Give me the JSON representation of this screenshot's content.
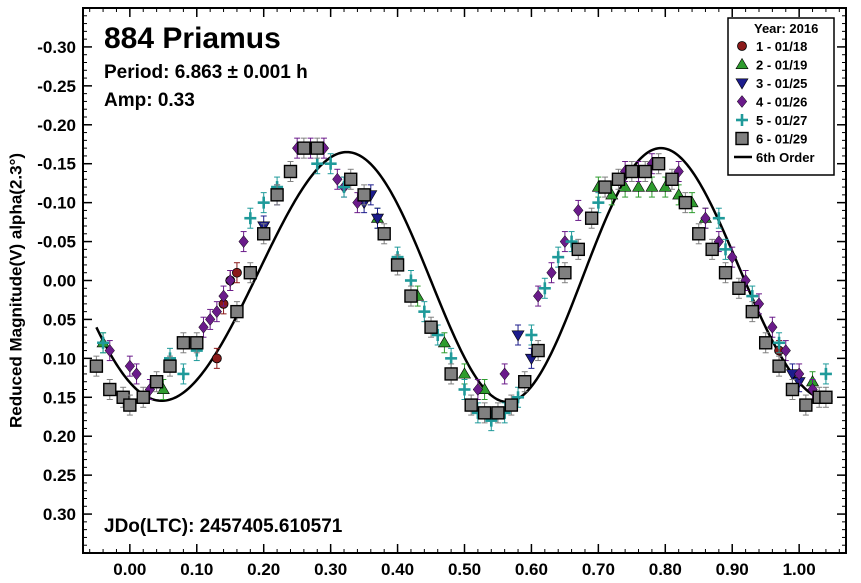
{
  "chart_data": {
    "type": "scatter",
    "title": "884 Priamus",
    "period_text": "Period: 6.863 ± 0.001 h",
    "amp_text": "Amp: 0.33",
    "jd_text": "JDo(LTC): 2457405.610571",
    "xlabel": "",
    "ylabel": "Reduced Magnitude(V) alpha(2.3°)",
    "xlim": [
      -0.07,
      1.07
    ],
    "ylim": [
      -0.35,
      0.35
    ],
    "y_inverted": true,
    "x_ticks": [
      "0.00",
      "0.10",
      "0.20",
      "0.30",
      "0.40",
      "0.50",
      "0.60",
      "0.70",
      "0.80",
      "0.90",
      "1.00"
    ],
    "y_ticks": [
      "-0.30",
      "-0.25",
      "-0.20",
      "-0.15",
      "-0.10",
      "-0.05",
      "0.00",
      "0.05",
      "0.10",
      "0.15",
      "0.20",
      "0.25",
      "0.30"
    ],
    "legend": {
      "title": "Year: 2016",
      "position": "top-right",
      "fit_label": "6th Order"
    },
    "fit": {
      "name": "6th Order",
      "mean": -0.005,
      "harmonics": [
        {
          "n": 1,
          "cos": 0.016,
          "sin": 0.0
        },
        {
          "n": 2,
          "cos": 0.12,
          "sin": 0.105
        },
        {
          "n": 3,
          "cos": 0.0,
          "sin": -0.018
        }
      ]
    },
    "series": [
      {
        "name": "1 - 01/18",
        "marker": "circle",
        "color": "#8b1a1a",
        "x": [
          0.13,
          0.14,
          0.15,
          0.16,
          0.97
        ],
        "y": [
          0.1,
          0.03,
          0.0,
          -0.01,
          0.09
        ]
      },
      {
        "name": "2 - 01/19",
        "marker": "triangle-up",
        "color": "#2e9c2e",
        "x": [
          -0.04,
          0.05,
          0.37,
          0.43,
          0.47,
          0.5,
          0.53,
          0.7,
          0.72,
          0.74,
          0.76,
          0.78,
          0.8,
          0.82,
          0.84,
          0.86,
          1.02
        ],
        "y": [
          0.08,
          0.14,
          -0.08,
          0.02,
          0.08,
          0.12,
          0.14,
          -0.12,
          -0.11,
          -0.12,
          -0.12,
          -0.12,
          -0.12,
          -0.11,
          -0.1,
          -0.08,
          0.13
        ]
      },
      {
        "name": "3 - 01/25",
        "marker": "triangle-down",
        "color": "#1c1c8c",
        "x": [
          0.2,
          0.22,
          0.35,
          0.36,
          0.37,
          0.58,
          0.6,
          0.99,
          1.0
        ],
        "y": [
          -0.07,
          -0.11,
          -0.1,
          -0.11,
          -0.08,
          0.07,
          0.1,
          0.12,
          0.13
        ]
      },
      {
        "name": "4 - 01/26",
        "marker": "diamond",
        "color": "#6a1b8a",
        "x": [
          -0.03,
          0.0,
          0.01,
          0.03,
          0.11,
          0.12,
          0.13,
          0.14,
          0.15,
          0.17,
          0.25,
          0.27,
          0.29,
          0.31,
          0.32,
          0.34,
          0.52,
          0.56,
          0.61,
          0.63,
          0.65,
          0.67,
          0.74,
          0.76,
          0.78,
          0.82,
          0.86,
          0.88,
          0.9,
          0.92,
          0.94,
          0.96,
          0.98,
          1.0,
          1.02
        ],
        "y": [
          0.09,
          0.11,
          0.12,
          0.14,
          0.06,
          0.05,
          0.04,
          0.02,
          0.0,
          -0.05,
          -0.17,
          -0.17,
          -0.17,
          -0.13,
          -0.12,
          -0.1,
          0.14,
          0.12,
          0.02,
          -0.01,
          -0.05,
          -0.09,
          -0.14,
          -0.14,
          -0.15,
          -0.14,
          -0.08,
          -0.05,
          -0.03,
          0.0,
          0.03,
          0.06,
          0.09,
          0.12,
          0.14
        ]
      },
      {
        "name": "5 - 01/27",
        "marker": "plus",
        "color": "#1f9a9a",
        "x": [
          -0.04,
          0.06,
          0.08,
          0.1,
          0.18,
          0.2,
          0.22,
          0.24,
          0.28,
          0.3,
          0.32,
          0.4,
          0.42,
          0.44,
          0.46,
          0.48,
          0.5,
          0.52,
          0.54,
          0.56,
          0.58,
          0.6,
          0.62,
          0.64,
          0.66,
          0.7,
          0.88,
          0.89,
          0.93,
          0.97,
          1.04
        ],
        "y": [
          0.08,
          0.1,
          0.12,
          0.09,
          -0.08,
          -0.1,
          -0.12,
          -0.14,
          -0.15,
          -0.15,
          -0.12,
          -0.03,
          0.0,
          0.04,
          0.07,
          0.1,
          0.14,
          0.17,
          0.18,
          0.17,
          0.15,
          0.07,
          0.01,
          -0.03,
          -0.05,
          -0.1,
          -0.08,
          -0.04,
          0.02,
          0.08,
          0.12
        ]
      },
      {
        "name": "6 - 01/29",
        "marker": "square",
        "color": "#808080",
        "x": [
          -0.05,
          -0.03,
          -0.01,
          0.0,
          0.02,
          0.04,
          0.06,
          0.08,
          0.1,
          0.16,
          0.18,
          0.2,
          0.22,
          0.24,
          0.26,
          0.28,
          0.33,
          0.35,
          0.38,
          0.4,
          0.42,
          0.45,
          0.48,
          0.51,
          0.53,
          0.55,
          0.57,
          0.59,
          0.61,
          0.65,
          0.67,
          0.69,
          0.71,
          0.73,
          0.75,
          0.77,
          0.79,
          0.81,
          0.83,
          0.85,
          0.87,
          0.89,
          0.91,
          0.93,
          0.95,
          0.97,
          0.99,
          1.01,
          1.03,
          1.04
        ],
        "y": [
          0.11,
          0.14,
          0.15,
          0.16,
          0.15,
          0.13,
          0.11,
          0.08,
          0.08,
          0.04,
          -0.01,
          -0.06,
          -0.11,
          -0.14,
          -0.17,
          -0.17,
          -0.13,
          -0.11,
          -0.06,
          -0.02,
          0.02,
          0.06,
          0.12,
          0.16,
          0.17,
          0.17,
          0.16,
          0.13,
          0.09,
          -0.01,
          -0.04,
          -0.08,
          -0.12,
          -0.13,
          -0.14,
          -0.14,
          -0.15,
          -0.13,
          -0.1,
          -0.06,
          -0.04,
          -0.01,
          0.01,
          0.04,
          0.08,
          0.11,
          0.14,
          0.16,
          0.15,
          0.15
        ]
      }
    ]
  }
}
